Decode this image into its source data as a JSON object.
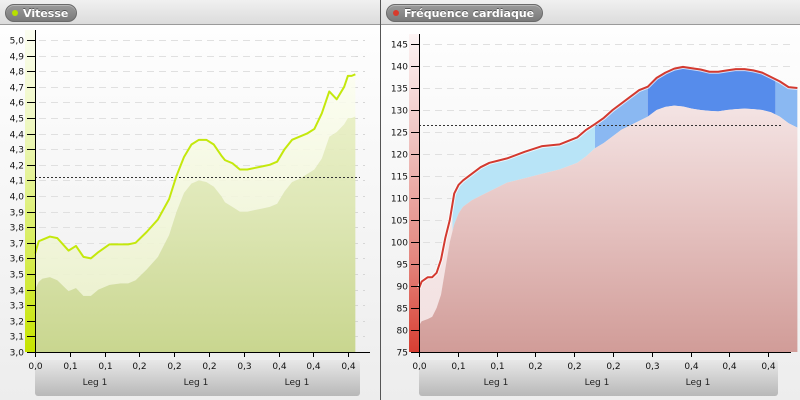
{
  "panels": [
    {
      "title": "Vitesse",
      "dot_color": "#b8e000",
      "line_color": "#c4e80c"
    },
    {
      "title": "Fréquence cardiaque",
      "dot_color": "#d83a2c",
      "line_color": "#d33a30"
    }
  ],
  "chart_data": [
    {
      "type": "area",
      "title": "Vitesse",
      "xlabel": "",
      "ylabel": "",
      "ylim": [
        3.0,
        5.0
      ],
      "y_ticks": [
        "3,0",
        "3,1",
        "3,2",
        "3,3",
        "3,4",
        "3,5",
        "3,6",
        "3,7",
        "3,8",
        "3,9",
        "4,0",
        "4,1",
        "4,2",
        "4,3",
        "4,4",
        "4,5",
        "4,6",
        "4,7",
        "4,8",
        "4,9",
        "5,0"
      ],
      "x_ticks": [
        "0,0",
        "0,1",
        "0,1",
        "0,2",
        "0,2",
        "0,2",
        "0,3",
        "0,4",
        "0,4",
        "0,4"
      ],
      "leg_labels": [
        "Leg 1",
        "Leg 1",
        "Leg 1"
      ],
      "reference_line": 4.12,
      "grid": true,
      "series": [
        {
          "name": "Vitesse",
          "x": [
            0.0,
            0.005,
            0.01,
            0.02,
            0.03,
            0.045,
            0.055,
            0.065,
            0.075,
            0.085,
            0.1,
            0.115,
            0.125,
            0.135,
            0.15,
            0.165,
            0.18,
            0.19,
            0.2,
            0.21,
            0.22,
            0.23,
            0.24,
            0.25,
            0.255,
            0.265,
            0.275,
            0.285,
            0.295,
            0.305,
            0.315,
            0.325,
            0.335,
            0.345,
            0.355,
            0.365,
            0.375,
            0.385,
            0.395,
            0.405,
            0.415,
            0.42,
            0.425,
            0.43
          ],
          "values": [
            3.63,
            3.71,
            3.72,
            3.74,
            3.73,
            3.65,
            3.68,
            3.61,
            3.6,
            3.64,
            3.69,
            3.69,
            3.69,
            3.7,
            3.77,
            3.85,
            3.98,
            4.13,
            4.25,
            4.33,
            4.36,
            4.36,
            4.33,
            4.26,
            4.23,
            4.21,
            4.17,
            4.17,
            4.18,
            4.19,
            4.2,
            4.22,
            4.3,
            4.36,
            4.38,
            4.4,
            4.43,
            4.53,
            4.67,
            4.62,
            4.7,
            4.77,
            4.77,
            4.78
          ]
        },
        {
          "name": "Vitesse (band lower)",
          "values": [
            3.4,
            3.45,
            3.47,
            3.48,
            3.46,
            3.39,
            3.41,
            3.36,
            3.36,
            3.4,
            3.43,
            3.44,
            3.44,
            3.46,
            3.53,
            3.61,
            3.75,
            3.9,
            4.02,
            4.08,
            4.1,
            4.09,
            4.06,
            4.0,
            3.96,
            3.93,
            3.9,
            3.9,
            3.91,
            3.92,
            3.93,
            3.95,
            4.03,
            4.09,
            4.11,
            4.14,
            4.17,
            4.24,
            4.38,
            4.41,
            4.46,
            4.5,
            4.5,
            4.51
          ]
        }
      ]
    },
    {
      "type": "area",
      "title": "Fréquence cardiaque",
      "xlabel": "",
      "ylabel": "",
      "ylim": [
        75,
        147
      ],
      "y_ticks": [
        "75",
        "80",
        "85",
        "90",
        "95",
        "100",
        "105",
        "110",
        "115",
        "120",
        "125",
        "130",
        "135",
        "140",
        "145"
      ],
      "x_ticks": [
        "0,0",
        "0,1",
        "0,1",
        "0,2",
        "0,2",
        "0,2",
        "0,3",
        "0,4",
        "0,4",
        "0,4"
      ],
      "leg_labels": [
        "Leg 1",
        "Leg 1",
        "Leg 1"
      ],
      "reference_line": 126.7,
      "grid": true,
      "zones": [
        {
          "name": "zone-light-blue",
          "color": "#b8e4f7",
          "x_range": [
            0.038,
            0.2
          ]
        },
        {
          "name": "zone-mid-blue",
          "color": "#8ab8f2",
          "x_range": [
            0.2,
            0.26
          ]
        },
        {
          "name": "zone-dark-blue",
          "color": "#568ceb",
          "x_range": [
            0.26,
            0.405
          ]
        },
        {
          "name": "zone-mid-blue-2",
          "color": "#8ab8f2",
          "x_range": [
            0.405,
            0.43
          ]
        }
      ],
      "series": [
        {
          "name": "Fréquence cardiaque",
          "x": [
            0.0,
            0.003,
            0.01,
            0.015,
            0.02,
            0.025,
            0.03,
            0.035,
            0.04,
            0.045,
            0.05,
            0.06,
            0.07,
            0.08,
            0.09,
            0.1,
            0.12,
            0.14,
            0.16,
            0.18,
            0.19,
            0.2,
            0.21,
            0.22,
            0.23,
            0.24,
            0.25,
            0.26,
            0.27,
            0.28,
            0.29,
            0.3,
            0.31,
            0.32,
            0.33,
            0.34,
            0.35,
            0.36,
            0.37,
            0.38,
            0.39,
            0.4,
            0.41,
            0.42,
            0.43
          ],
          "values": [
            89.5,
            91,
            92,
            92,
            93,
            96,
            101,
            105,
            111,
            113,
            114,
            115.5,
            117,
            118,
            118.5,
            119,
            120.5,
            121.8,
            122.2,
            123.8,
            125.5,
            126.8,
            128.2,
            130,
            131.5,
            133,
            134.5,
            135.3,
            137.3,
            138.5,
            139.4,
            139.8,
            139.5,
            139.2,
            138.7,
            138.7,
            139,
            139.3,
            139.3,
            139,
            138.5,
            137.5,
            136.5,
            135.2,
            135
          ]
        },
        {
          "name": "Fréquence cardiaque (band lower)",
          "values": [
            81,
            82,
            82.5,
            83,
            85,
            88,
            94,
            100,
            104,
            106.5,
            108,
            109.5,
            110.5,
            111.5,
            112.5,
            113.5,
            114.5,
            115.5,
            116.5,
            118,
            119.5,
            121.3,
            122.5,
            124,
            125.5,
            126.5,
            127.5,
            128.5,
            130,
            130.7,
            131,
            130.8,
            130.3,
            130,
            129.8,
            129.7,
            130,
            130.2,
            130.3,
            130.2,
            130,
            129.5,
            128.5,
            127,
            126
          ]
        }
      ]
    }
  ]
}
